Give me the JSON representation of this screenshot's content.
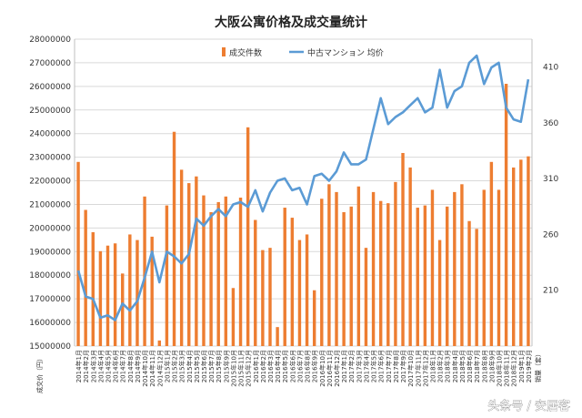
{
  "chart_data": {
    "type": "bar+line",
    "title": "大阪公寓价格及成交量统计",
    "left_axis": {
      "label": "成交价（円）",
      "min": 15000000,
      "max": 28000000,
      "step": 1000000
    },
    "right_axis": {
      "label": "销量（套）",
      "min": 160,
      "max": 435,
      "ticks": [
        210,
        260,
        310,
        360,
        410
      ]
    },
    "legend_position": "top-center",
    "grid": true,
    "series": [
      {
        "name": "成交件数",
        "kind": "bar",
        "axis": "right",
        "color": "#ED7D31",
        "values": [
          325,
          282,
          262,
          245,
          250,
          252,
          225,
          260,
          255,
          294,
          258,
          165,
          286,
          352,
          318,
          306,
          312,
          295,
          280,
          289,
          294,
          212,
          293,
          356,
          273,
          246,
          248,
          177,
          284,
          275,
          255,
          260,
          210,
          292,
          305,
          298,
          280,
          285,
          303,
          248,
          298,
          290,
          288,
          307,
          333,
          320,
          284,
          286,
          300,
          255,
          285,
          298,
          305,
          272,
          265,
          300,
          325,
          300,
          395,
          320,
          327,
          330
        ]
      },
      {
        "name": "中古マンション 均价",
        "kind": "line",
        "axis": "left",
        "color": "#5B9BD5",
        "values": [
          18200000,
          17100000,
          17000000,
          16200000,
          16300000,
          16100000,
          16800000,
          16500000,
          16900000,
          17900000,
          19000000,
          17700000,
          19000000,
          18800000,
          18500000,
          18900000,
          20400000,
          20100000,
          20500000,
          20800000,
          20500000,
          21000000,
          21100000,
          20900000,
          21600000,
          20700000,
          21500000,
          22000000,
          22100000,
          21600000,
          21700000,
          21000000,
          22200000,
          22300000,
          22000000,
          22400000,
          23200000,
          22700000,
          22700000,
          22900000,
          24200000,
          25500000,
          24400000,
          24700000,
          24900000,
          25200000,
          25500000,
          24900000,
          25100000,
          26700000,
          25100000,
          25800000,
          26000000,
          27000000,
          27300000,
          26100000,
          26800000,
          27000000,
          25100000,
          24600000,
          24500000,
          26300000
        ]
      }
    ],
    "categories": [
      "2014年1月",
      "2014年2月",
      "2014年3月",
      "2014年4月",
      "2014年5月",
      "2014年6月",
      "2014年7月",
      "2014年8月",
      "2014年9月",
      "2014年10月",
      "2014年11月",
      "2014年12月",
      "2015年1月",
      "2015年2月",
      "2015年3月",
      "2015年4月",
      "2015年5月",
      "2015年6月",
      "2015年7月",
      "2015年8月",
      "2015年9月",
      "2015年10月",
      "2015年11月",
      "2015年12月",
      "2016年1月",
      "2016年2月",
      "2016年3月",
      "2016年4月",
      "2016年5月",
      "2016年6月",
      "2016年7月",
      "2016年8月",
      "2016年9月",
      "2016年10月",
      "2016年11月",
      "2016年12月",
      "2017年1月",
      "2017年2月",
      "2017年3月",
      "2017年4月",
      "2017年5月",
      "2017年6月",
      "2017年7月",
      "2017年8月",
      "2017年9月",
      "2017年10月",
      "2017年11月",
      "2017年12月",
      "2018年1月",
      "2018年2月",
      "2018年3月",
      "2018年4月",
      "2018年5月",
      "2018年6月",
      "2018年7月",
      "2018年8月",
      "2018年9月",
      "2018年10月",
      "2018年11月",
      "2018年12月",
      "2019年1月",
      "2019年2月"
    ],
    "y_tick_labels": [
      "15000000",
      "16000000",
      "17000000",
      "18000000",
      "19000000",
      "20000000",
      "21000000",
      "22000000",
      "23000000",
      "24000000",
      "25000000",
      "26000000",
      "27000000",
      "28000000"
    ],
    "y2_tick_labels": [
      "210",
      "260",
      "310",
      "360",
      "410"
    ]
  },
  "watermark": "头条号 / 安居客"
}
